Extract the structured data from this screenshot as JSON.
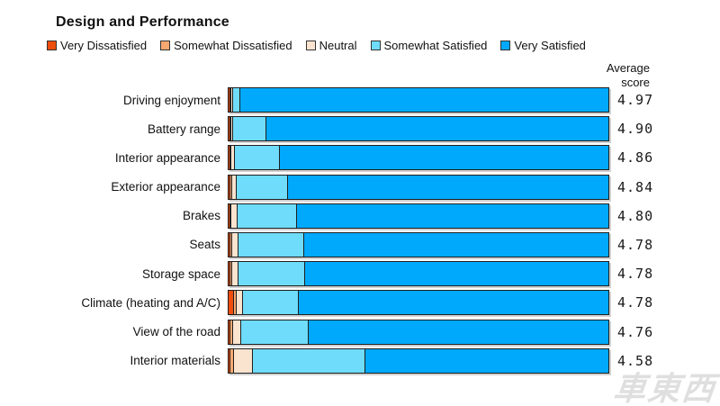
{
  "title": "Design and Performance",
  "legend": [
    {
      "label": "Very Dissatisfied",
      "color": "#EE4D0E"
    },
    {
      "label": "Somewhat Dissatisfied",
      "color": "#F8A871"
    },
    {
      "label": "Neutral",
      "color": "#FBE4CF"
    },
    {
      "label": "Somewhat Satisfied",
      "color": "#6FDCFB"
    },
    {
      "label": "Very Satisfied",
      "color": "#00A9FB"
    }
  ],
  "avg_header": {
    "line1": "Average",
    "line2": "score"
  },
  "scores_display": [
    "4.97",
    "4.90",
    "4.86",
    "4.84",
    "4.80",
    "4.78",
    "4.78",
    "4.78",
    "4.76",
    "4.58"
  ],
  "watermark": "車東西",
  "chart_data": {
    "type": "bar",
    "orientation": "horizontal",
    "stacked": true,
    "unit": "percent_of_respondents",
    "title": "Design and Performance",
    "legend_position": "top",
    "grid": false,
    "categories": [
      "Driving enjoyment",
      "Battery range",
      "Interior appearance",
      "Exterior appearance",
      "Brakes",
      "Seats",
      "Storage space",
      "Climate (heating and A/C)",
      "View of the road",
      "Interior materials"
    ],
    "series": [
      {
        "name": "Very Dissatisfied",
        "color": "#EE4D0E",
        "values": [
          0.5,
          0.5,
          0.5,
          0.5,
          0.5,
          0.5,
          0.5,
          1.4,
          0.5,
          0.5
        ]
      },
      {
        "name": "Somewhat Dissatisfied",
        "color": "#F8A871",
        "values": [
          0.25,
          0.25,
          0.25,
          0.5,
          0.25,
          0.5,
          0.5,
          0.7,
          0.7,
          0.9
        ]
      },
      {
        "name": "Neutral",
        "color": "#FBE4CF",
        "values": [
          0.35,
          0.55,
          0.95,
          1.2,
          1.65,
          1.7,
          1.7,
          1.7,
          2.1,
          5.0
        ]
      },
      {
        "name": "Somewhat Satisfied",
        "color": "#6FDCFB",
        "values": [
          1.9,
          8.7,
          11.8,
          13.4,
          15.6,
          17.2,
          17.5,
          14.6,
          17.9,
          29.7
        ]
      },
      {
        "name": "Very Satisfied",
        "color": "#00A9FB",
        "values": [
          97.0,
          90.0,
          86.5,
          84.4,
          82.0,
          80.1,
          79.8,
          81.6,
          78.8,
          63.9
        ]
      }
    ],
    "average_scores": [
      4.97,
      4.9,
      4.86,
      4.84,
      4.8,
      4.78,
      4.78,
      4.78,
      4.76,
      4.58
    ],
    "average_scores_label": "Average score",
    "xlim": [
      0,
      100
    ]
  }
}
